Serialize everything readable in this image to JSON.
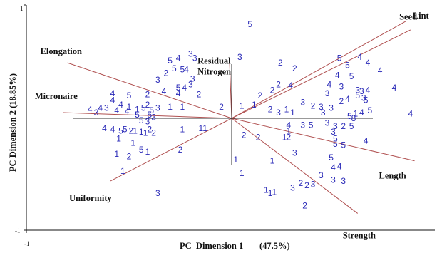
{
  "chart_data": {
    "type": "scatter",
    "subtype": "PCA biplot",
    "xlabel": "PC  Dimension 1",
    "xlabel_pct": "(47.5%)",
    "ylabel": "PC Dimension 2 (18.85%)",
    "xlim": [
      -1,
      1
    ],
    "ylim": [
      -1,
      1
    ],
    "x_ticks": [
      "-1"
    ],
    "y_ticks": [
      "1",
      "-1"
    ],
    "colors": {
      "points": "#2a2ab8",
      "vectors": "#b05050",
      "axes": "#111111"
    },
    "vectors": [
      {
        "name": "Seed",
        "x": 0.86,
        "y": 0.86
      },
      {
        "name": "Lint",
        "x": 0.88,
        "y": 0.78
      },
      {
        "name": "Elongation",
        "x": -0.8,
        "y": 0.49
      },
      {
        "name": "Micronaire",
        "x": -0.82,
        "y": 0.05
      },
      {
        "name": "Residual Nitrogen",
        "x": -0.01,
        "y": 0.48
      },
      {
        "name": "Uniformity",
        "x": -0.59,
        "y": -0.56
      },
      {
        "name": "Length",
        "x": 0.9,
        "y": -0.38
      },
      {
        "name": "Strength",
        "x": 0.62,
        "y": -0.85
      }
    ],
    "points": [
      {
        "x": -0.3,
        "y": 0.51,
        "label": "5"
      },
      {
        "x": -0.26,
        "y": 0.53,
        "label": "4"
      },
      {
        "x": -0.2,
        "y": 0.57,
        "label": "3"
      },
      {
        "x": -0.18,
        "y": 0.53,
        "label": "3"
      },
      {
        "x": -0.28,
        "y": 0.44,
        "label": "5"
      },
      {
        "x": -0.24,
        "y": 0.43,
        "label": "5"
      },
      {
        "x": -0.22,
        "y": 0.43,
        "label": "4"
      },
      {
        "x": -0.32,
        "y": 0.4,
        "label": "2"
      },
      {
        "x": -0.36,
        "y": 0.34,
        "label": "3"
      },
      {
        "x": -0.19,
        "y": 0.35,
        "label": "3"
      },
      {
        "x": -0.2,
        "y": 0.3,
        "label": "3"
      },
      {
        "x": -0.33,
        "y": 0.24,
        "label": "4"
      },
      {
        "x": -0.26,
        "y": 0.27,
        "label": "5"
      },
      {
        "x": -0.23,
        "y": 0.27,
        "label": "4"
      },
      {
        "x": -0.26,
        "y": 0.22,
        "label": "4"
      },
      {
        "x": -0.16,
        "y": 0.21,
        "label": "2"
      },
      {
        "x": -0.41,
        "y": 0.21,
        "label": "2"
      },
      {
        "x": -0.58,
        "y": 0.22,
        "label": "4"
      },
      {
        "x": -0.5,
        "y": 0.2,
        "label": "5"
      },
      {
        "x": -0.58,
        "y": 0.16,
        "label": "4"
      },
      {
        "x": -0.54,
        "y": 0.12,
        "label": "4"
      },
      {
        "x": -0.5,
        "y": 0.1,
        "label": "1"
      },
      {
        "x": -0.46,
        "y": 0.08,
        "label": "1"
      },
      {
        "x": -0.43,
        "y": 0.09,
        "label": "5"
      },
      {
        "x": -0.41,
        "y": 0.12,
        "label": "2"
      },
      {
        "x": -0.39,
        "y": 0.07,
        "label": "5"
      },
      {
        "x": -0.36,
        "y": 0.09,
        "label": "3"
      },
      {
        "x": -0.3,
        "y": 0.1,
        "label": "1"
      },
      {
        "x": -0.69,
        "y": 0.08,
        "label": "4"
      },
      {
        "x": -0.66,
        "y": 0.05,
        "label": "3"
      },
      {
        "x": -0.64,
        "y": 0.09,
        "label": "4"
      },
      {
        "x": -0.61,
        "y": 0.09,
        "label": "3"
      },
      {
        "x": -0.56,
        "y": 0.07,
        "label": "4"
      },
      {
        "x": -0.51,
        "y": 0.06,
        "label": "4"
      },
      {
        "x": -0.4,
        "y": 0.03,
        "label": "5"
      },
      {
        "x": -0.38,
        "y": 0.01,
        "label": "3"
      },
      {
        "x": -0.46,
        "y": 0.03,
        "label": "5"
      },
      {
        "x": -0.44,
        "y": -0.02,
        "label": "5"
      },
      {
        "x": -0.41,
        "y": -0.03,
        "label": "3"
      },
      {
        "x": -0.62,
        "y": -0.09,
        "label": "4"
      },
      {
        "x": -0.58,
        "y": -0.1,
        "label": "4"
      },
      {
        "x": -0.54,
        "y": -0.11,
        "label": "5"
      },
      {
        "x": -0.52,
        "y": -0.1,
        "label": "5"
      },
      {
        "x": -0.49,
        "y": -0.11,
        "label": "2"
      },
      {
        "x": -0.47,
        "y": -0.11,
        "label": "1"
      },
      {
        "x": -0.44,
        "y": -0.12,
        "label": "1"
      },
      {
        "x": -0.42,
        "y": -0.13,
        "label": "1"
      },
      {
        "x": -0.4,
        "y": -0.1,
        "label": "2"
      },
      {
        "x": -0.38,
        "y": -0.13,
        "label": "2"
      },
      {
        "x": -0.55,
        "y": -0.18,
        "label": "1"
      },
      {
        "x": -0.48,
        "y": -0.22,
        "label": "1"
      },
      {
        "x": -0.44,
        "y": -0.28,
        "label": "5"
      },
      {
        "x": -0.41,
        "y": -0.3,
        "label": "1"
      },
      {
        "x": -0.56,
        "y": -0.32,
        "label": "1"
      },
      {
        "x": -0.5,
        "y": -0.34,
        "label": "2"
      },
      {
        "x": -0.53,
        "y": -0.47,
        "label": "1"
      },
      {
        "x": -0.36,
        "y": -0.67,
        "label": "3"
      },
      {
        "x": -0.25,
        "y": -0.28,
        "label": "2"
      },
      {
        "x": -0.24,
        "y": -0.1,
        "label": "1"
      },
      {
        "x": -0.15,
        "y": -0.09,
        "label": "1"
      },
      {
        "x": -0.13,
        "y": -0.09,
        "label": "1"
      },
      {
        "x": -0.24,
        "y": 0.1,
        "label": "1"
      },
      {
        "x": -0.05,
        "y": 0.1,
        "label": "2"
      },
      {
        "x": 0.09,
        "y": 0.83,
        "label": "5"
      },
      {
        "x": 0.04,
        "y": 0.54,
        "label": "3"
      },
      {
        "x": 0.24,
        "y": 0.49,
        "label": "2"
      },
      {
        "x": 0.31,
        "y": 0.44,
        "label": "2"
      },
      {
        "x": 0.29,
        "y": 0.29,
        "label": "4"
      },
      {
        "x": 0.23,
        "y": 0.3,
        "label": "2"
      },
      {
        "x": 0.2,
        "y": 0.25,
        "label": "2"
      },
      {
        "x": 0.14,
        "y": 0.2,
        "label": "2"
      },
      {
        "x": 0.11,
        "y": 0.12,
        "label": "1"
      },
      {
        "x": 0.19,
        "y": 0.08,
        "label": "2"
      },
      {
        "x": 0.23,
        "y": 0.05,
        "label": "3"
      },
      {
        "x": 0.27,
        "y": 0.08,
        "label": "1"
      },
      {
        "x": 0.05,
        "y": 0.11,
        "label": "1"
      },
      {
        "x": 0.3,
        "y": 0.05,
        "label": "1"
      },
      {
        "x": 0.35,
        "y": 0.14,
        "label": "3"
      },
      {
        "x": 0.4,
        "y": 0.11,
        "label": "2"
      },
      {
        "x": 0.44,
        "y": 0.1,
        "label": "3"
      },
      {
        "x": 0.45,
        "y": 0.05,
        "label": "3"
      },
      {
        "x": 0.49,
        "y": 0.09,
        "label": "3"
      },
      {
        "x": 0.53,
        "y": 0.53,
        "label": "5"
      },
      {
        "x": 0.57,
        "y": 0.47,
        "label": "5"
      },
      {
        "x": 0.52,
        "y": 0.38,
        "label": "4"
      },
      {
        "x": 0.63,
        "y": 0.54,
        "label": "4"
      },
      {
        "x": 0.67,
        "y": 0.49,
        "label": "4"
      },
      {
        "x": 0.73,
        "y": 0.42,
        "label": "4"
      },
      {
        "x": 0.59,
        "y": 0.37,
        "label": "5"
      },
      {
        "x": 0.48,
        "y": 0.3,
        "label": "4"
      },
      {
        "x": 0.54,
        "y": 0.28,
        "label": "3"
      },
      {
        "x": 0.62,
        "y": 0.25,
        "label": "3"
      },
      {
        "x": 0.64,
        "y": 0.24,
        "label": "3"
      },
      {
        "x": 0.67,
        "y": 0.25,
        "label": "4"
      },
      {
        "x": 0.62,
        "y": 0.2,
        "label": "5"
      },
      {
        "x": 0.65,
        "y": 0.18,
        "label": "3"
      },
      {
        "x": 0.66,
        "y": 0.16,
        "label": "5"
      },
      {
        "x": 0.57,
        "y": 0.17,
        "label": "4"
      },
      {
        "x": 0.54,
        "y": 0.15,
        "label": "2"
      },
      {
        "x": 0.47,
        "y": 0.22,
        "label": "3"
      },
      {
        "x": 0.8,
        "y": 0.27,
        "label": "4"
      },
      {
        "x": 0.64,
        "y": 0.05,
        "label": "4"
      },
      {
        "x": 0.68,
        "y": 0.07,
        "label": "5"
      },
      {
        "x": 0.58,
        "y": 0.02,
        "label": "5"
      },
      {
        "x": 0.61,
        "y": 0.04,
        "label": "1"
      },
      {
        "x": 0.6,
        "y": 0.0,
        "label": "8"
      },
      {
        "x": 0.88,
        "y": 0.04,
        "label": "4"
      },
      {
        "x": 0.28,
        "y": -0.06,
        "label": "4"
      },
      {
        "x": 0.35,
        "y": -0.06,
        "label": "3"
      },
      {
        "x": 0.39,
        "y": -0.06,
        "label": "5"
      },
      {
        "x": 0.47,
        "y": -0.04,
        "label": "3"
      },
      {
        "x": 0.51,
        "y": -0.07,
        "label": "3"
      },
      {
        "x": 0.55,
        "y": -0.07,
        "label": "2"
      },
      {
        "x": 0.59,
        "y": -0.07,
        "label": "5"
      },
      {
        "x": 0.28,
        "y": -0.11,
        "label": "1"
      },
      {
        "x": 0.5,
        "y": -0.12,
        "label": "3"
      },
      {
        "x": 0.26,
        "y": -0.17,
        "label": "1"
      },
      {
        "x": 0.28,
        "y": -0.17,
        "label": "2"
      },
      {
        "x": 0.51,
        "y": -0.18,
        "label": "5"
      },
      {
        "x": 0.66,
        "y": -0.2,
        "label": "4"
      },
      {
        "x": 0.51,
        "y": -0.23,
        "label": "5"
      },
      {
        "x": 0.55,
        "y": -0.24,
        "label": "5"
      },
      {
        "x": 0.06,
        "y": -0.15,
        "label": "2"
      },
      {
        "x": 0.13,
        "y": -0.17,
        "label": "2"
      },
      {
        "x": 0.31,
        "y": -0.31,
        "label": "3"
      },
      {
        "x": 0.02,
        "y": -0.37,
        "label": "1"
      },
      {
        "x": 0.2,
        "y": -0.38,
        "label": "1"
      },
      {
        "x": 0.49,
        "y": -0.35,
        "label": "5"
      },
      {
        "x": 0.5,
        "y": -0.44,
        "label": "4"
      },
      {
        "x": 0.53,
        "y": -0.43,
        "label": "4"
      },
      {
        "x": 0.05,
        "y": -0.49,
        "label": "1"
      },
      {
        "x": 0.44,
        "y": -0.51,
        "label": "3"
      },
      {
        "x": 0.5,
        "y": -0.55,
        "label": "3"
      },
      {
        "x": 0.55,
        "y": -0.56,
        "label": "3"
      },
      {
        "x": 0.34,
        "y": -0.58,
        "label": "2"
      },
      {
        "x": 0.37,
        "y": -0.6,
        "label": "2"
      },
      {
        "x": 0.4,
        "y": -0.59,
        "label": "3"
      },
      {
        "x": 0.3,
        "y": -0.62,
        "label": "3"
      },
      {
        "x": 0.17,
        "y": -0.64,
        "label": "1"
      },
      {
        "x": 0.21,
        "y": -0.66,
        "label": "1"
      },
      {
        "x": 0.19,
        "y": -0.67,
        "label": "1"
      },
      {
        "x": 0.36,
        "y": -0.78,
        "label": "2"
      }
    ]
  }
}
